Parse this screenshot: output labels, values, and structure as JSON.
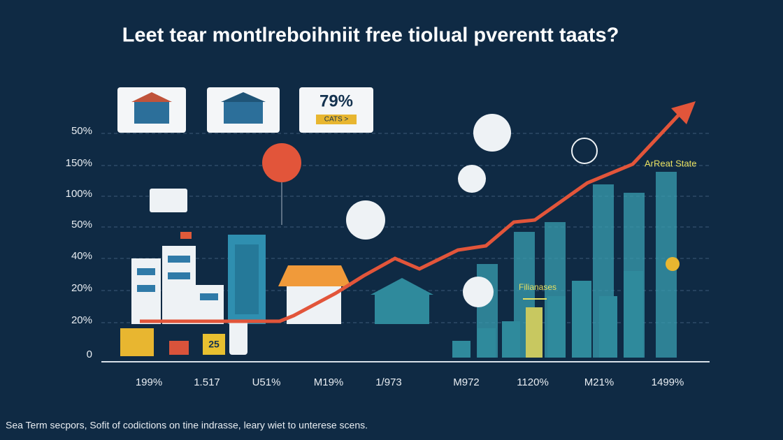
{
  "title": "Leet tear montlreboihniit free tiolual pverentt taats?",
  "cards": [
    {
      "label": "79%",
      "sublabel": "CATS >"
    }
  ],
  "y_axis_labels": [
    "50%",
    "150%",
    "100%",
    "50%",
    "40%",
    "20%",
    "20%",
    "0"
  ],
  "x_axis_labels": [
    "199%",
    "1.517",
    "U51%",
    "M19%",
    "1/973",
    "M972",
    "1120%",
    "M21%",
    "1499%"
  ],
  "annotations": {
    "real_estate": "ArReat State",
    "finances": "Filianases",
    "cart_number": "25"
  },
  "caption": "Sea Term secpors, Sofit of codictions on tine indrasse, leary wiet to unterese scens."
}
